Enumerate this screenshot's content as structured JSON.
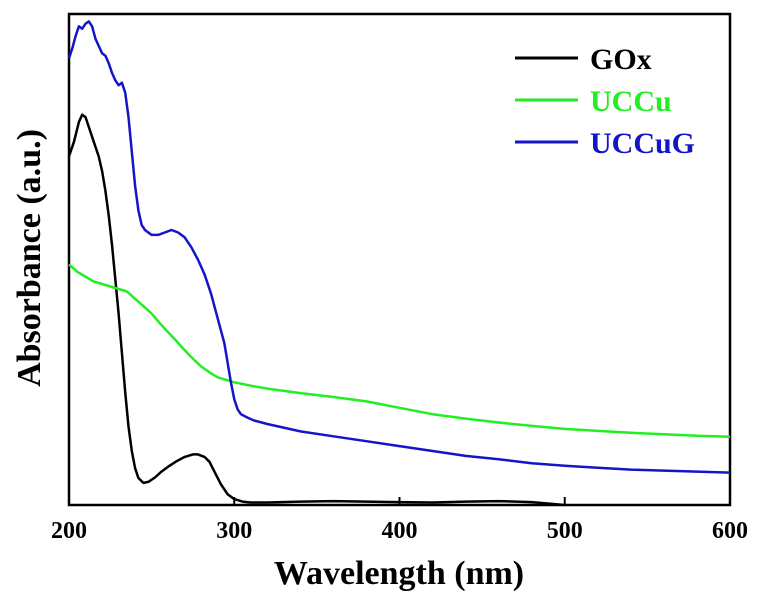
{
  "chart_data": {
    "type": "line",
    "title": "",
    "xlabel": "Wavelength (nm)",
    "ylabel": "Absorbance (a.u.)",
    "xlim": [
      200,
      600
    ],
    "ylim": [
      0,
      1
    ],
    "xticks": [
      200,
      300,
      400,
      500,
      600
    ],
    "yticks_shown": false,
    "grid": false,
    "legend_position": "top-right",
    "series": [
      {
        "name": "GOx",
        "color": "#000000",
        "x": [
          200,
          203,
          206,
          208,
          210,
          212,
          214,
          216,
          218,
          220,
          222,
          224,
          226,
          228,
          230,
          232,
          234,
          236,
          238,
          240,
          242,
          245,
          248,
          252,
          256,
          260,
          265,
          270,
          275,
          278,
          282,
          285,
          288,
          292,
          296,
          300,
          305,
          310,
          320,
          340,
          360,
          380,
          400,
          420,
          440,
          460,
          480,
          500
        ],
        "y": [
          0.71,
          0.74,
          0.78,
          0.795,
          0.79,
          0.77,
          0.75,
          0.73,
          0.71,
          0.68,
          0.64,
          0.59,
          0.53,
          0.46,
          0.39,
          0.31,
          0.23,
          0.16,
          0.11,
          0.075,
          0.055,
          0.045,
          0.047,
          0.056,
          0.068,
          0.078,
          0.089,
          0.098,
          0.103,
          0.103,
          0.098,
          0.088,
          0.068,
          0.042,
          0.022,
          0.012,
          0.007,
          0.005,
          0.005,
          0.007,
          0.008,
          0.007,
          0.006,
          0.005,
          0.007,
          0.008,
          0.006,
          0.0
        ]
      },
      {
        "name": "UCCu",
        "color": "#22ee22",
        "x": [
          200,
          205,
          210,
          215,
          220,
          225,
          230,
          235,
          240,
          245,
          250,
          255,
          260,
          265,
          270,
          275,
          280,
          285,
          290,
          295,
          300,
          310,
          320,
          340,
          360,
          380,
          400,
          420,
          440,
          460,
          480,
          500,
          520,
          540,
          560,
          580,
          600
        ],
        "y": [
          0.49,
          0.475,
          0.465,
          0.455,
          0.45,
          0.445,
          0.44,
          0.435,
          0.42,
          0.405,
          0.39,
          0.37,
          0.352,
          0.334,
          0.315,
          0.298,
          0.282,
          0.27,
          0.26,
          0.255,
          0.25,
          0.243,
          0.237,
          0.228,
          0.22,
          0.211,
          0.198,
          0.185,
          0.176,
          0.168,
          0.161,
          0.155,
          0.151,
          0.147,
          0.144,
          0.141,
          0.139
        ]
      },
      {
        "name": "UCCuG",
        "color": "#1515c8",
        "x": [
          200,
          202,
          204,
          206,
          208,
          210,
          212,
          214,
          216,
          218,
          220,
          222,
          224,
          226,
          228,
          230,
          232,
          234,
          236,
          238,
          240,
          242,
          244,
          246,
          248,
          250,
          254,
          258,
          262,
          266,
          270,
          274,
          278,
          282,
          286,
          290,
          294,
          296,
          298,
          300,
          302,
          304,
          308,
          312,
          320,
          340,
          360,
          380,
          400,
          420,
          440,
          460,
          480,
          500,
          520,
          540,
          560,
          580,
          600
        ],
        "y": [
          0.91,
          0.93,
          0.955,
          0.975,
          0.97,
          0.98,
          0.985,
          0.975,
          0.95,
          0.935,
          0.92,
          0.915,
          0.9,
          0.88,
          0.865,
          0.855,
          0.86,
          0.84,
          0.79,
          0.72,
          0.65,
          0.6,
          0.57,
          0.56,
          0.555,
          0.55,
          0.55,
          0.555,
          0.56,
          0.555,
          0.545,
          0.525,
          0.5,
          0.47,
          0.43,
          0.38,
          0.33,
          0.29,
          0.25,
          0.215,
          0.195,
          0.185,
          0.178,
          0.172,
          0.165,
          0.15,
          0.14,
          0.13,
          0.12,
          0.11,
          0.1,
          0.093,
          0.085,
          0.08,
          0.076,
          0.072,
          0.07,
          0.068,
          0.066
        ]
      }
    ]
  }
}
